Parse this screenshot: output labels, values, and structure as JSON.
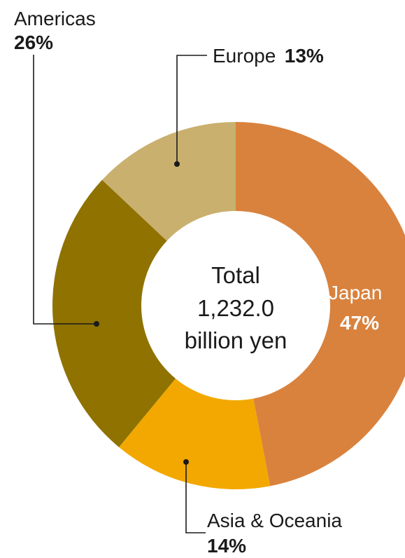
{
  "chart_data": {
    "type": "pie",
    "variant": "donut",
    "center": {
      "line1": "Total",
      "line2": "1,232.0",
      "line3": "billion yen"
    },
    "slices": [
      {
        "name": "Japan",
        "value": 47,
        "label": "47%",
        "color": "#D9823D"
      },
      {
        "name": "Asia & Oceania",
        "value": 14,
        "label": "14%",
        "color": "#F2A800"
      },
      {
        "name": "Americas",
        "value": 26,
        "label": "26%",
        "color": "#8F7200"
      },
      {
        "name": "Europe",
        "value": 13,
        "label": "13%",
        "color": "#C9B06E"
      }
    ]
  }
}
